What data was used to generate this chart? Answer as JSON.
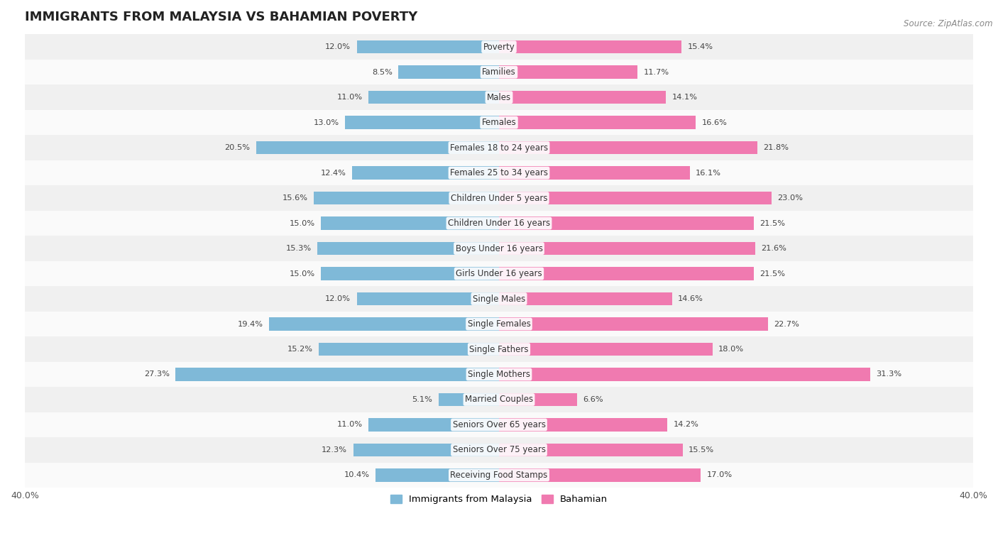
{
  "title": "IMMIGRANTS FROM MALAYSIA VS BAHAMIAN POVERTY",
  "source": "Source: ZipAtlas.com",
  "categories": [
    "Poverty",
    "Families",
    "Males",
    "Females",
    "Females 18 to 24 years",
    "Females 25 to 34 years",
    "Children Under 5 years",
    "Children Under 16 years",
    "Boys Under 16 years",
    "Girls Under 16 years",
    "Single Males",
    "Single Females",
    "Single Fathers",
    "Single Mothers",
    "Married Couples",
    "Seniors Over 65 years",
    "Seniors Over 75 years",
    "Receiving Food Stamps"
  ],
  "malaysia_values": [
    12.0,
    8.5,
    11.0,
    13.0,
    20.5,
    12.4,
    15.6,
    15.0,
    15.3,
    15.0,
    12.0,
    19.4,
    15.2,
    27.3,
    5.1,
    11.0,
    12.3,
    10.4
  ],
  "bahamian_values": [
    15.4,
    11.7,
    14.1,
    16.6,
    21.8,
    16.1,
    23.0,
    21.5,
    21.6,
    21.5,
    14.6,
    22.7,
    18.0,
    31.3,
    6.6,
    14.2,
    15.5,
    17.0
  ],
  "malaysia_color": "#7fb9d8",
  "bahamian_color": "#f07ab0",
  "axis_limit": 40.0,
  "bar_height": 0.52,
  "background_color": "#ffffff",
  "row_colors": [
    "#f0f0f0",
    "#fafafa"
  ],
  "label_fontsize": 8.5,
  "title_fontsize": 13,
  "value_fontsize": 8.2,
  "legend_fontsize": 9.5
}
